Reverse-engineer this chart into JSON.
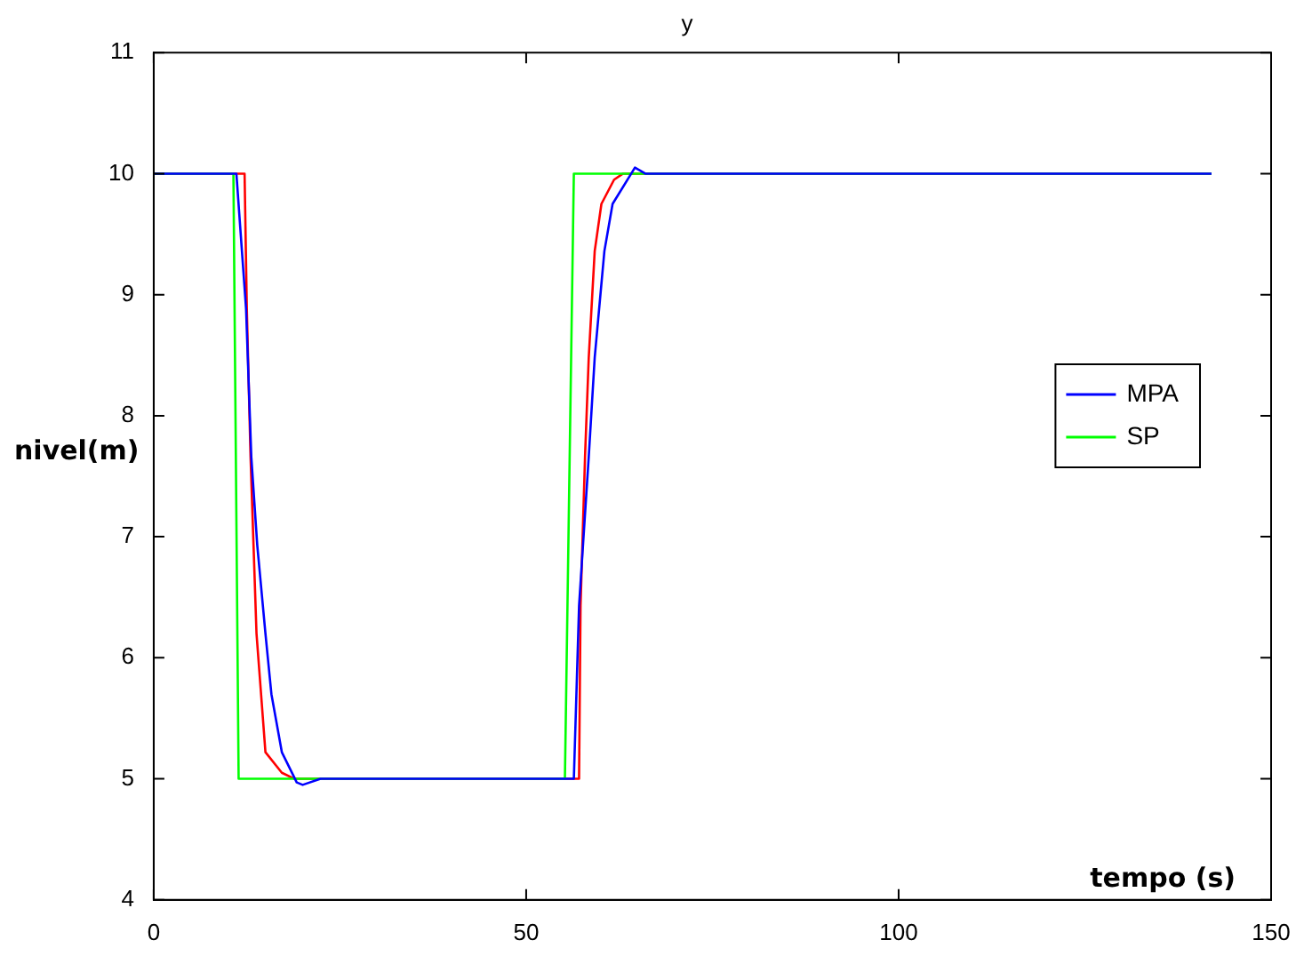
{
  "chart_data": {
    "type": "line",
    "title": "y",
    "xlabel": "tempo (s)",
    "ylabel": "nivel(m)",
    "xlim": [
      0,
      150
    ],
    "xticks": [
      0,
      50,
      100,
      150
    ],
    "ylim": [
      4,
      11
    ],
    "yticks": [
      4,
      5,
      6,
      7,
      8,
      9,
      10,
      11
    ],
    "grid": false,
    "legend": "right",
    "marker": "none",
    "line_style": "solid",
    "series": [
      {
        "name": "MPA",
        "color": "#0000ff",
        "x": [
          0,
          11.1,
          12.4,
          13.1,
          13.9,
          15.0,
          15.8,
          17.2,
          19.2,
          20,
          22.4,
          56.4,
          57.1,
          58.4,
          59.2,
          60.5,
          61.6,
          64.6,
          66,
          142
        ],
        "values": [
          10,
          10,
          8.88,
          7.66,
          6.93,
          6.2,
          5.7,
          5.22,
          4.97,
          4.95,
          5,
          5,
          6.43,
          7.66,
          8.48,
          9.36,
          9.75,
          10.05,
          10,
          10
        ]
      },
      {
        "name": "SP",
        "color": "#00ff00",
        "x": [
          0,
          10.7,
          11.4,
          55.2,
          56.4,
          142
        ],
        "values": [
          10,
          10,
          5,
          5,
          10,
          10
        ]
      },
      {
        "color": "#ff0000",
        "x": [
          0,
          12.2,
          12.5,
          13.0,
          13.4,
          13.8,
          15.0,
          17.2,
          18.9,
          57.1,
          57.3,
          57.9,
          58.4,
          59.2,
          60.1,
          61.8,
          63,
          142
        ],
        "values": [
          10,
          10,
          8.88,
          7.66,
          6.93,
          6.2,
          5.22,
          5.05,
          5,
          5,
          6.43,
          7.66,
          8.48,
          9.36,
          9.75,
          9.95,
          10,
          10
        ]
      }
    ]
  }
}
